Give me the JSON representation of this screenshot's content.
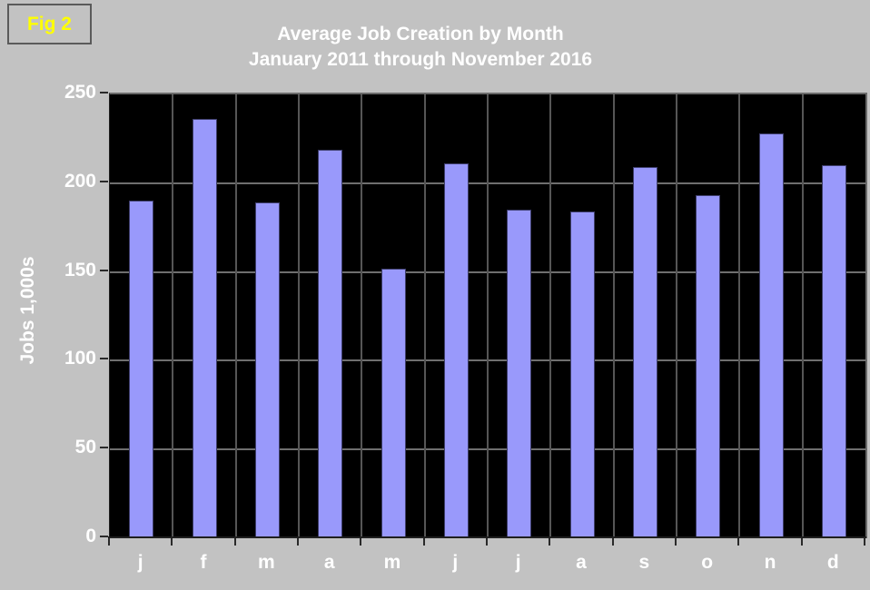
{
  "figure_label": "Fig 2",
  "title": {
    "line1": "Average Job Creation by Month",
    "line2": "January 2011 through November 2016"
  },
  "chart_data": {
    "type": "bar",
    "title": "Average Job Creation by Month",
    "subtitle": "January 2011 through November 2016",
    "categories": [
      "j",
      "f",
      "m",
      "a",
      "m",
      "j",
      "j",
      "a",
      "s",
      "o",
      "n",
      "d"
    ],
    "values": [
      190,
      236,
      189,
      219,
      152,
      211,
      185,
      184,
      209,
      193,
      228,
      210
    ],
    "xlabel": "",
    "ylabel": "Jobs 1,000s",
    "ylim": [
      0,
      250
    ],
    "yticks": [
      0,
      50,
      100,
      150,
      200,
      250
    ],
    "grid": true,
    "legend": "none"
  },
  "colors": {
    "page_bg": "#c2c2c2",
    "plot_bg": "#000000",
    "bar_fill": "#9999fb",
    "bar_border": "#3e3e6b",
    "gridline_h": "#6f6f6f",
    "gridline_v": "#565656",
    "axis": "#1f1f1f",
    "tick": "#2a2a2a",
    "text": "#ffffff",
    "figure_label_text": "#ffff00",
    "figure_label_border": "#5a5a5a"
  }
}
